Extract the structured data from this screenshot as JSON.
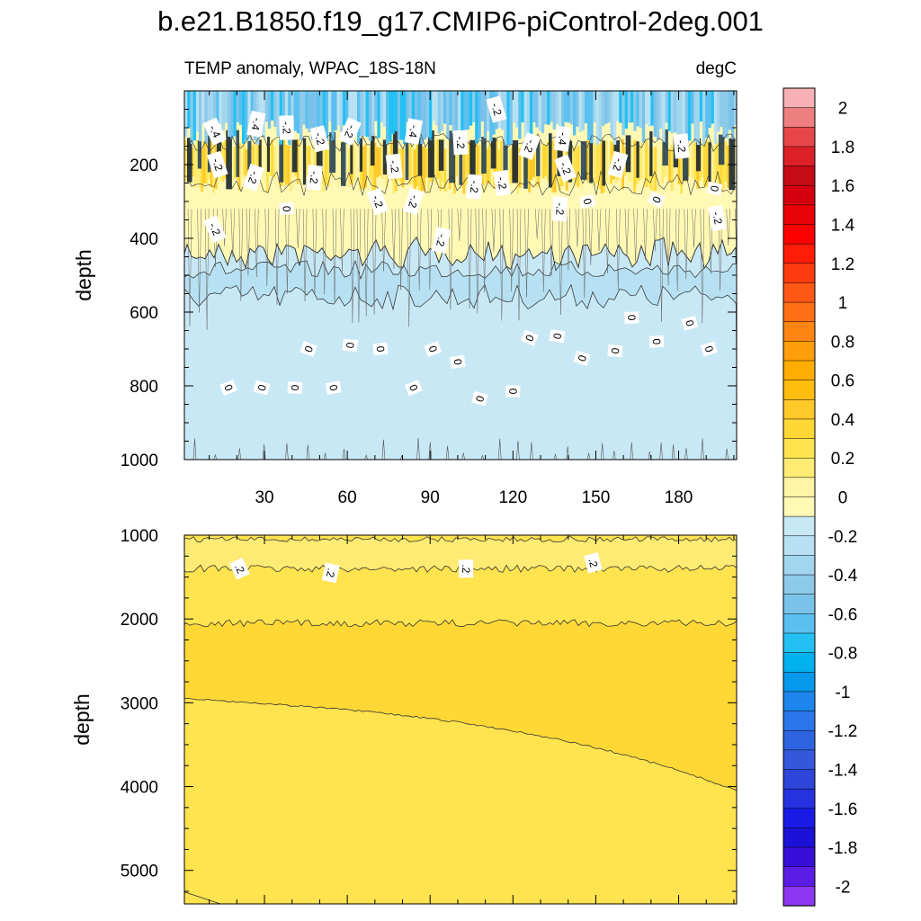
{
  "chart_data": {
    "type": "heatmap",
    "title": "b.e21.B1850.f19_g17.CMIP6-piControl-2deg.001",
    "subtitle_left": "TEMP anomaly, WPAC_18S-18N",
    "subtitle_right": "degC",
    "x_range": [
      1,
      201
    ],
    "x_ticks": [
      "30",
      "60",
      "90",
      "120",
      "150",
      "180"
    ],
    "upper_panel": {
      "ylabel": "depth",
      "y_range": [
        0,
        1000
      ],
      "y_ticks": [
        "200",
        "400",
        "600",
        "800",
        "1000"
      ],
      "contour_labels": [
        {
          "text": "-.4",
          "x": 12,
          "y": 110
        },
        {
          "text": "-.4",
          "x": 27,
          "y": 90
        },
        {
          "text": "-.2",
          "x": 38,
          "y": 100
        },
        {
          "text": "-.2",
          "x": 50,
          "y": 130
        },
        {
          "text": "-.2",
          "x": 61,
          "y": 110
        },
        {
          "text": "-.4",
          "x": 84,
          "y": 110
        },
        {
          "text": "-.2",
          "x": 101,
          "y": 140
        },
        {
          "text": "-.2",
          "x": 114,
          "y": 50
        },
        {
          "text": "-.2",
          "x": 126,
          "y": 150
        },
        {
          "text": "-.4",
          "x": 138,
          "y": 130
        },
        {
          "text": "-.2",
          "x": 181,
          "y": 150
        },
        {
          "text": "-.2",
          "x": 13,
          "y": 200
        },
        {
          "text": "-.2",
          "x": 26,
          "y": 235
        },
        {
          "text": "-.2",
          "x": 48,
          "y": 235
        },
        {
          "text": "-.2",
          "x": 77,
          "y": 205
        },
        {
          "text": "-.2",
          "x": 71,
          "y": 300
        },
        {
          "text": "-.2",
          "x": 84,
          "y": 300
        },
        {
          "text": "-.2",
          "x": 106,
          "y": 260
        },
        {
          "text": "-.2",
          "x": 116,
          "y": 250
        },
        {
          "text": "-.2",
          "x": 139,
          "y": 210
        },
        {
          "text": "-.2",
          "x": 158,
          "y": 200
        },
        {
          "text": "-.2",
          "x": 137,
          "y": 320
        },
        {
          "text": "-.2",
          "x": 194,
          "y": 345
        },
        {
          "text": "-.2",
          "x": 12,
          "y": 375
        },
        {
          "text": "-.2",
          "x": 94,
          "y": 405
        },
        {
          "text": "0",
          "x": 38,
          "y": 320
        },
        {
          "text": "0",
          "x": 147,
          "y": 300
        },
        {
          "text": "0",
          "x": 172,
          "y": 295
        },
        {
          "text": "0",
          "x": 193,
          "y": 265
        },
        {
          "text": "0",
          "x": 163,
          "y": 615
        },
        {
          "text": "0",
          "x": 184,
          "y": 630
        },
        {
          "text": "0",
          "x": 126,
          "y": 670
        },
        {
          "text": "0",
          "x": 136,
          "y": 665
        },
        {
          "text": "0",
          "x": 172,
          "y": 680
        },
        {
          "text": "0",
          "x": 191,
          "y": 700
        },
        {
          "text": "0",
          "x": 46,
          "y": 700
        },
        {
          "text": "0",
          "x": 61,
          "y": 690
        },
        {
          "text": "0",
          "x": 72,
          "y": 700
        },
        {
          "text": "0",
          "x": 91,
          "y": 700
        },
        {
          "text": "0",
          "x": 145,
          "y": 725
        },
        {
          "text": "0",
          "x": 157,
          "y": 705
        },
        {
          "text": "0",
          "x": 100,
          "y": 735
        },
        {
          "text": "0",
          "x": 17,
          "y": 805
        },
        {
          "text": "0",
          "x": 29,
          "y": 805
        },
        {
          "text": "0",
          "x": 41,
          "y": 805
        },
        {
          "text": "0",
          "x": 55,
          "y": 805
        },
        {
          "text": "0",
          "x": 84,
          "y": 805
        },
        {
          "text": "0",
          "x": 108,
          "y": 835
        },
        {
          "text": "0",
          "x": 120,
          "y": 815
        }
      ]
    },
    "lower_panel": {
      "ylabel": "depth",
      "y_range": [
        1000,
        5400
      ],
      "y_ticks": [
        "1000",
        "2000",
        "3000",
        "4000",
        "5000"
      ],
      "contour_labels": [
        {
          "text": ".2",
          "x": 21,
          "y": 1400
        },
        {
          "text": ".2",
          "x": 54,
          "y": 1450
        },
        {
          "text": ".2",
          "x": 103,
          "y": 1400
        },
        {
          "text": ".2",
          "x": 149,
          "y": 1330
        }
      ]
    },
    "colorbar": {
      "labels": [
        "2",
        "1.8",
        "1.6",
        "1.4",
        "1.2",
        "1",
        "0.8",
        "0.6",
        "0.4",
        "0.2",
        "0",
        "-0.2",
        "-0.4",
        "-0.6",
        "-0.8",
        "-1",
        "-1.2",
        "-1.4",
        "-1.6",
        "-1.8",
        "-2"
      ],
      "colors_top_to_bottom": [
        "#f7b1b4",
        "#ee7f80",
        "#e8474a",
        "#dc2026",
        "#c50b14",
        "#d5000f",
        "#ea0209",
        "#ff0000",
        "#ff1c08",
        "#ff3c10",
        "#ff5715",
        "#ff6f14",
        "#ff8512",
        "#ff9d0b",
        "#ffad02",
        "#ffbd0d",
        "#ffc92a",
        "#ffd835",
        "#ffe34f",
        "#fdeb74",
        "#fff5a4",
        "#fff9b5",
        "#c8e8f6",
        "#b7e1f3",
        "#a2d5ee",
        "#8dcaea",
        "#7ac2ea",
        "#5bc0ef",
        "#23c0f4",
        "#00b1ee",
        "#0699ec",
        "#1d85ec",
        "#2b76ea",
        "#2f64e0",
        "#3358db",
        "#2d46d9",
        "#2631e0",
        "#1a1ae6",
        "#1b12d7",
        "#380ed9",
        "#5b1ce5",
        "#8c36ef"
      ]
    }
  }
}
